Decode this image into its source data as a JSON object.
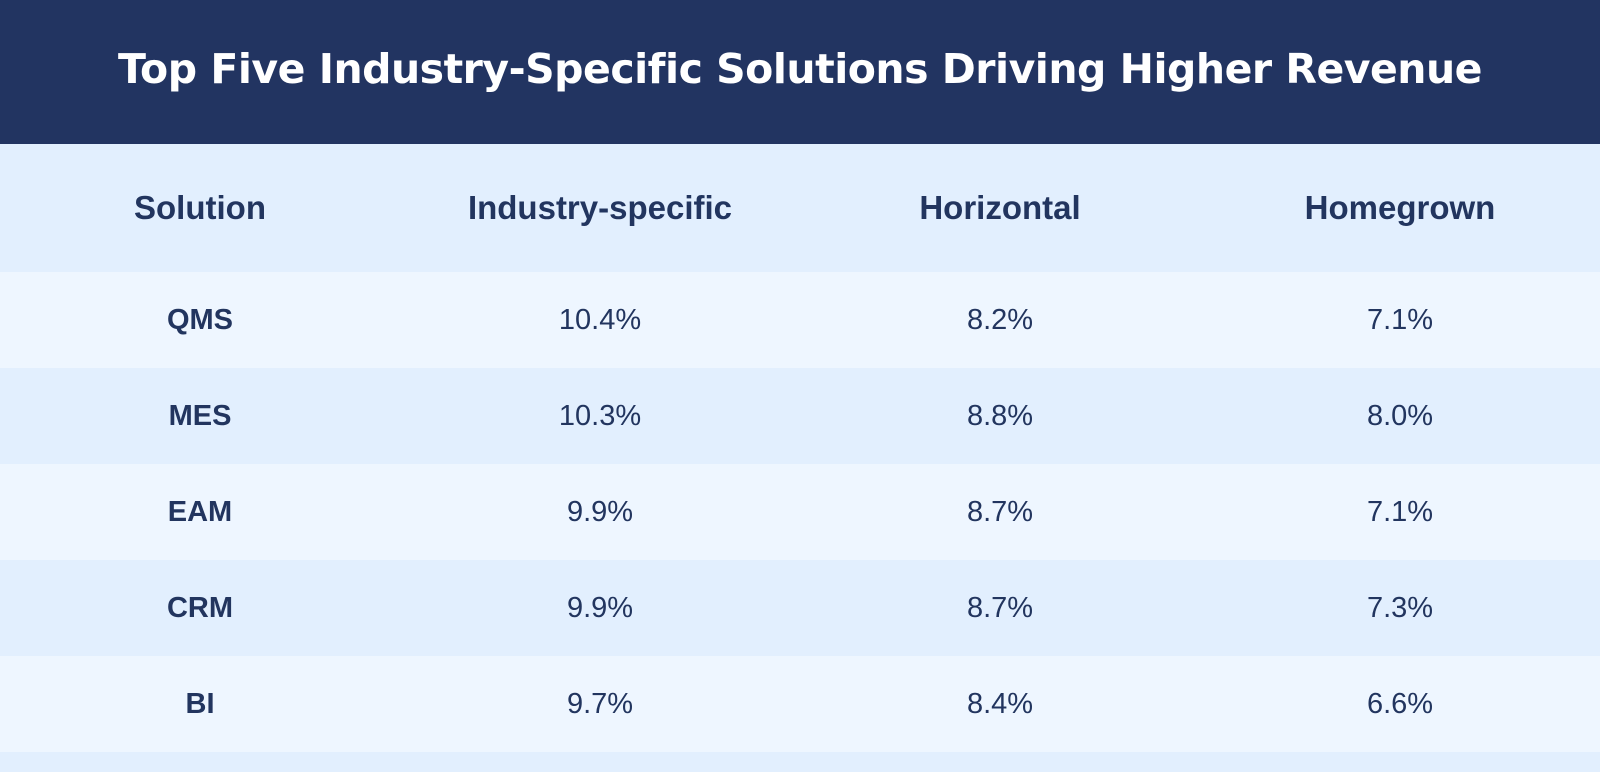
{
  "chart_data": {
    "type": "table",
    "title": "Top Five Industry-Specific Solutions Driving Higher Revenue",
    "columns": [
      "Solution",
      "Industry-specific",
      "Horizontal",
      "Homegrown"
    ],
    "rows": [
      {
        "solution": "QMS",
        "industry_specific": "10.4%",
        "horizontal": "8.2%",
        "homegrown": "7.1%"
      },
      {
        "solution": "MES",
        "industry_specific": "10.3%",
        "horizontal": "8.8%",
        "homegrown": "8.0%"
      },
      {
        "solution": "EAM",
        "industry_specific": "9.9%",
        "horizontal": "8.7%",
        "homegrown": "7.1%"
      },
      {
        "solution": "CRM",
        "industry_specific": "9.9%",
        "horizontal": "8.7%",
        "homegrown": "7.3%"
      },
      {
        "solution": "BI",
        "industry_specific": "9.7%",
        "horizontal": "8.4%",
        "homegrown": "6.6%"
      }
    ]
  },
  "colors": {
    "header_background": "#223461",
    "title_text": "#ffffff",
    "body_text": "#22355f",
    "row_light": "#eef6ff",
    "row_dark": "#e2effe"
  }
}
